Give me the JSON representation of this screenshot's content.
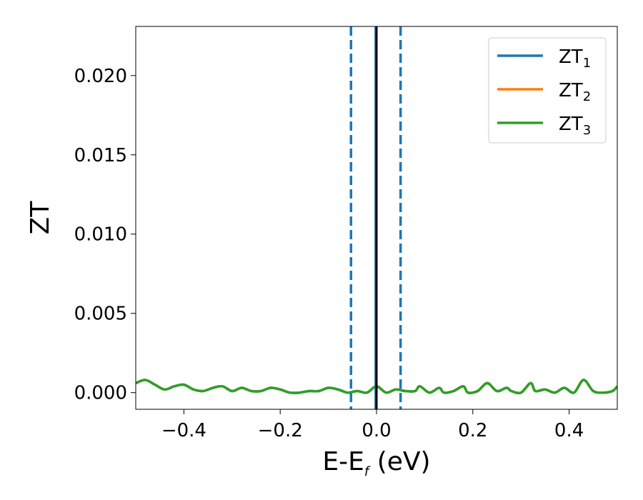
{
  "chart_data": {
    "type": "line",
    "title": "",
    "xlabel": "E-E",
    "xlabel_sub": "f",
    "xlabel_unit": " (eV)",
    "ylabel": "ZT",
    "xlim": [
      -0.5,
      0.5
    ],
    "ylim": [
      -0.00105,
      0.0231
    ],
    "xticks": [
      -0.4,
      -0.2,
      0.0,
      0.2,
      0.4
    ],
    "xtick_labels": [
      "−0.4",
      "−0.2",
      "0.0",
      "0.2",
      "0.4"
    ],
    "yticks": [
      0.0,
      0.005,
      0.01,
      0.015,
      0.02
    ],
    "ytick_labels": [
      "0.000",
      "0.005",
      "0.010",
      "0.015",
      "0.020"
    ],
    "grid": false,
    "legend_position": "top-right",
    "series": [
      {
        "name": "ZT",
        "sub": "1",
        "color": "#1f77b4"
      },
      {
        "name": "ZT",
        "sub": "2",
        "color": "#ff7f0e"
      },
      {
        "name": "ZT",
        "sub": "3",
        "color": "#2ca02c"
      }
    ],
    "x": [
      -0.5,
      -0.48,
      -0.46,
      -0.44,
      -0.42,
      -0.4,
      -0.38,
      -0.36,
      -0.34,
      -0.32,
      -0.3,
      -0.28,
      -0.26,
      -0.24,
      -0.22,
      -0.2,
      -0.18,
      -0.16,
      -0.14,
      -0.12,
      -0.1,
      -0.08,
      -0.06,
      -0.04,
      -0.02,
      0.0,
      0.02,
      0.04,
      0.06,
      0.08,
      0.09,
      0.11,
      0.13,
      0.14,
      0.16,
      0.18,
      0.19,
      0.21,
      0.23,
      0.25,
      0.27,
      0.28,
      0.3,
      0.32,
      0.33,
      0.35,
      0.37,
      0.39,
      0.41,
      0.43,
      0.45,
      0.47,
      0.49,
      0.5
    ],
    "y": [
      0.0006,
      0.0008,
      0.0005,
      0.0002,
      0.0004,
      0.0005,
      0.0002,
      0.0001,
      0.0003,
      0.0004,
      0.0001,
      0.0003,
      0.0001,
      0.0001,
      0.0003,
      0.0002,
      0.0,
      0.0,
      0.0001,
      0.0001,
      0.0003,
      0.0002,
      0.0,
      0.0001,
      0.0,
      0.0004,
      0.0,
      0.0002,
      0.0001,
      0.0001,
      0.0004,
      0.0,
      0.0003,
      0.0,
      0.0001,
      0.0004,
      0.0,
      0.0001,
      0.0006,
      0.0001,
      0.0003,
      0.0001,
      0.0,
      0.0006,
      0.0001,
      0.0002,
      0.0,
      0.0003,
      0.0,
      0.0008,
      0.0001,
      0.0,
      0.0001,
      0.0004
    ],
    "vlines": [
      {
        "x": -0.053,
        "color": "#1f77b4",
        "style": "dashed"
      },
      {
        "x": 0.05,
        "color": "#1f77b4",
        "style": "dashed"
      },
      {
        "x": -0.002,
        "color": "#1f77b4",
        "style": "solid"
      },
      {
        "x": 0.0,
        "color": "#000000",
        "style": "solid"
      }
    ]
  }
}
